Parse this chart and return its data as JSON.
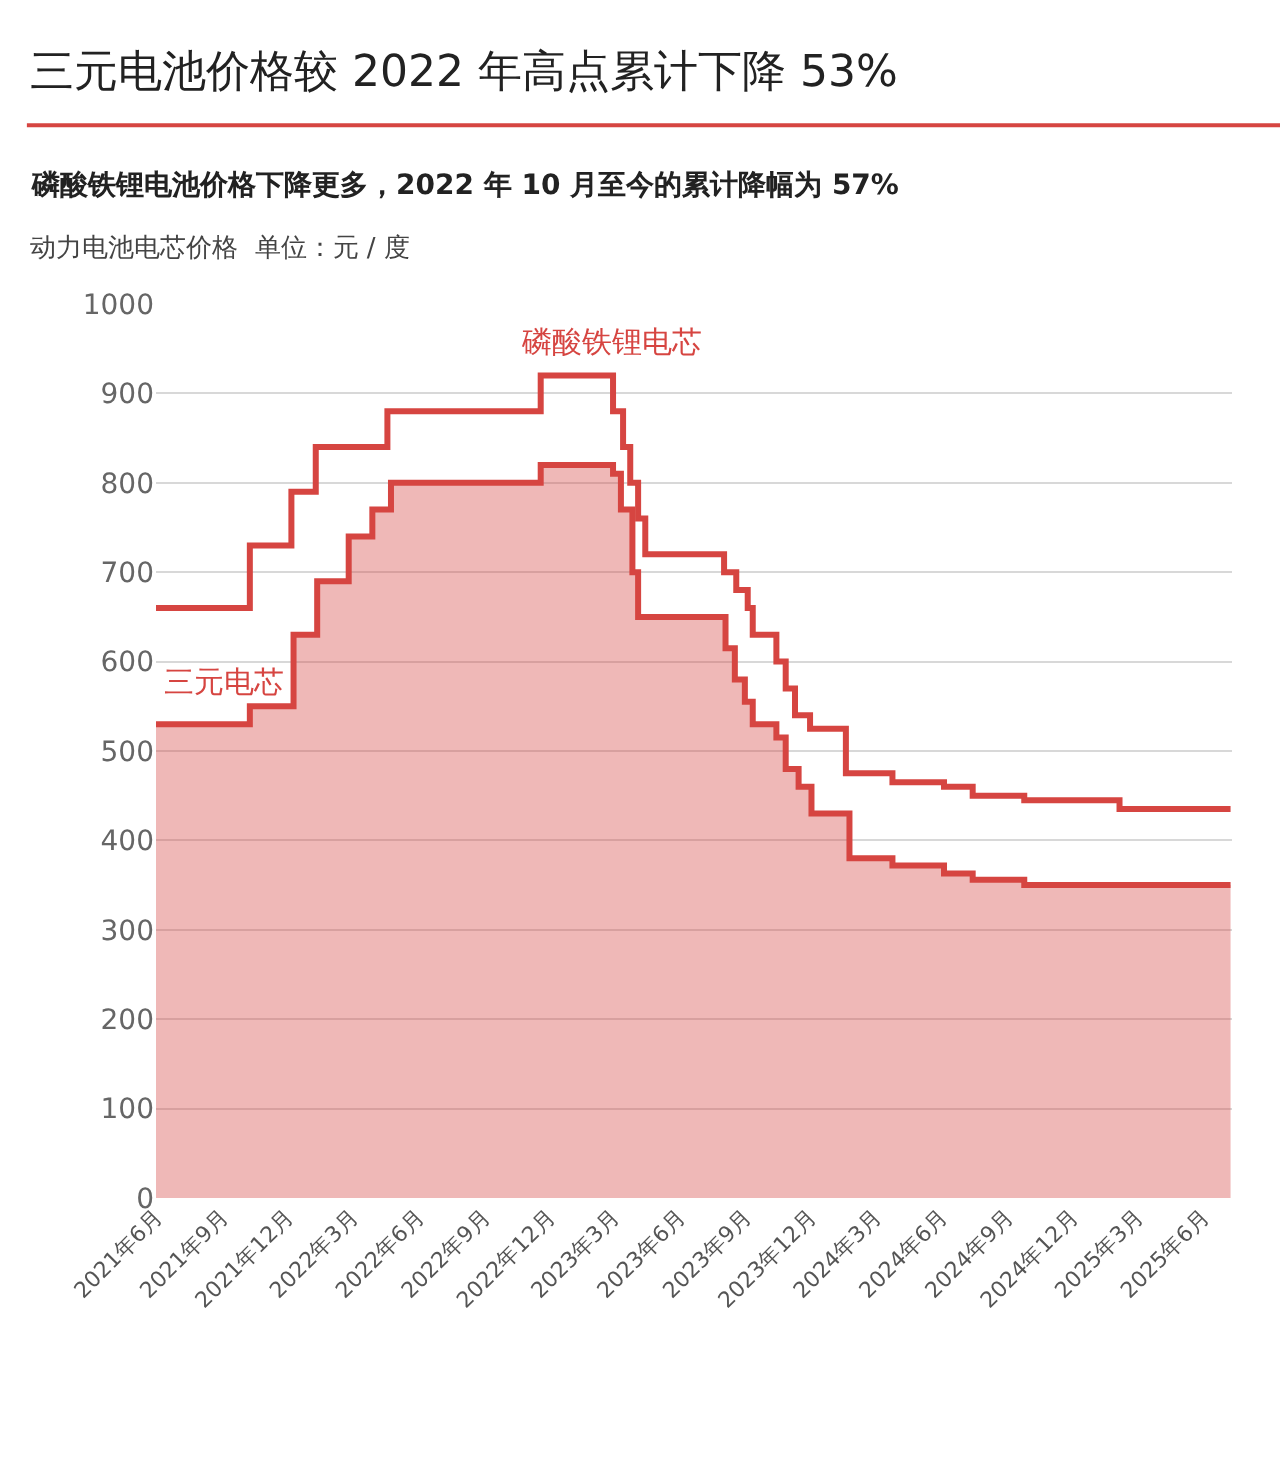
{
  "chart_data": {
    "type": "step",
    "title": "三元电池价格较 2022 年高点累计下降 53%",
    "subtitle": "磷酸铁锂电池价格下降更多，2022 年 10 月至今的累计降幅为 57%",
    "ylabel": "动力电池电芯价格  单位：元 / 度",
    "series": [
      {
        "name": "磷酸铁锂电芯",
        "color": "#d64541",
        "x": [
          "2021-06-01",
          "2021-10-10",
          "2021-12-07",
          "2022-01-10",
          "2022-04-20",
          "2022-11-20",
          "2023-03-01",
          "2023-03-15",
          "2023-03-25",
          "2023-04-05",
          "2023-04-15",
          "2023-08-03",
          "2023-08-20",
          "2023-09-05",
          "2023-09-12",
          "2023-10-15",
          "2023-10-28",
          "2023-11-10",
          "2023-12-01",
          "2024-01-20",
          "2024-03-25",
          "2024-06-05",
          "2024-07-15",
          "2024-09-25",
          "2025-02-05",
          "2025-07-10"
        ],
        "values": [
          660,
          730,
          790,
          840,
          880,
          920,
          880,
          840,
          800,
          760,
          720,
          700,
          680,
          660,
          630,
          600,
          570,
          540,
          525,
          475,
          465,
          460,
          450,
          445,
          435,
          435
        ]
      },
      {
        "name": "三元电芯",
        "type": "area",
        "color": "#d64541",
        "x": [
          "2021-06-01",
          "2021-10-10",
          "2021-10-10",
          "2021-12-10",
          "2021-12-10",
          "2022-01-12",
          "2022-01-12",
          "2022-02-25",
          "2022-02-25",
          "2022-03-30",
          "2022-03-30",
          "2022-04-25",
          "2022-04-25",
          "2022-11-20",
          "2022-11-20",
          "2023-03-01",
          "2023-03-01",
          "2023-03-12",
          "2023-03-12",
          "2023-03-28",
          "2023-03-28",
          "2023-04-05",
          "2023-04-05",
          "2023-08-05",
          "2023-08-05",
          "2023-08-18",
          "2023-08-18",
          "2023-09-01",
          "2023-09-01",
          "2023-09-12",
          "2023-09-12",
          "2023-10-15",
          "2023-10-15",
          "2023-10-28",
          "2023-10-28",
          "2023-11-15",
          "2023-11-15",
          "2023-12-03",
          "2023-12-03",
          "2024-01-25",
          "2024-01-25",
          "2024-03-25",
          "2024-03-25",
          "2024-06-05",
          "2024-06-05",
          "2024-07-15",
          "2024-07-15",
          "2024-09-25",
          "2024-09-25",
          "2025-07-10"
        ],
        "values": [
          530,
          530,
          550,
          550,
          630,
          630,
          690,
          690,
          740,
          740,
          770,
          770,
          800,
          800,
          820,
          820,
          810,
          810,
          770,
          770,
          700,
          700,
          650,
          650,
          615,
          615,
          580,
          580,
          555,
          555,
          530,
          530,
          515,
          515,
          480,
          480,
          460,
          460,
          430,
          430,
          380,
          380,
          372,
          372,
          363,
          363,
          356,
          356,
          350,
          350
        ]
      }
    ],
    "xlim": [
      "2021-06-01",
      "2025-07-12"
    ],
    "xticks": [
      {
        "value": "2021-06-01",
        "label": "2021年6月"
      },
      {
        "value": "2021-09-01",
        "label": "2021年9月"
      },
      {
        "value": "2021-12-01",
        "label": "2021年12月"
      },
      {
        "value": "2022-03-01",
        "label": "2022年3月"
      },
      {
        "value": "2022-06-01",
        "label": "2022年6月"
      },
      {
        "value": "2022-09-01",
        "label": "2022年9月"
      },
      {
        "value": "2022-12-01",
        "label": "2022年12月"
      },
      {
        "value": "2023-03-01",
        "label": "2023年3月"
      },
      {
        "value": "2023-06-01",
        "label": "2023年6月"
      },
      {
        "value": "2023-09-01",
        "label": "2023年9月"
      },
      {
        "value": "2023-12-01",
        "label": "2023年12月"
      },
      {
        "value": "2024-03-01",
        "label": "2024年3月"
      },
      {
        "value": "2024-06-01",
        "label": "2024年6月"
      },
      {
        "value": "2024-09-01",
        "label": "2024年9月"
      },
      {
        "value": "2024-12-01",
        "label": "2024年12月"
      },
      {
        "value": "2025-03-01",
        "label": "2025年3月"
      },
      {
        "value": "2025-06-01",
        "label": "2025年6月"
      }
    ],
    "ylim": [
      0,
      1000
    ],
    "yticks": [
      0,
      100,
      200,
      300,
      400,
      500,
      600,
      700,
      800,
      900,
      1000
    ],
    "grid": "y",
    "legend": false
  }
}
